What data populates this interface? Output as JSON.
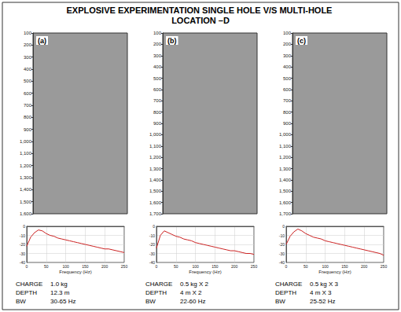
{
  "title": "EXPLOSIVE EXPERIMENTATION SINGLE HOLE V/S MULTI-HOLE LOCATION –D",
  "chart_data": [
    {
      "type": "seismic",
      "label": "(a)",
      "ylim": [
        100,
        1600
      ],
      "yticks": [
        100,
        200,
        300,
        400,
        500,
        600,
        700,
        800,
        900,
        1000,
        1100,
        1200,
        1300,
        1400,
        1500,
        1600
      ],
      "tick_labels": "y",
      "color": "#9a9a9a"
    },
    {
      "type": "seismic",
      "label": "(b)",
      "ylim": [
        100,
        1700
      ],
      "yticks": [
        100,
        200,
        300,
        400,
        500,
        600,
        700,
        800,
        900,
        1000,
        1100,
        1200,
        1300,
        1400,
        1500,
        1600,
        1700
      ],
      "tick_labels": "y",
      "color": "#9a9a9a"
    },
    {
      "type": "seismic",
      "label": "(c)",
      "ylim": [
        100,
        1700
      ],
      "yticks": [
        100,
        200,
        300,
        400,
        500,
        600,
        700,
        800,
        900,
        1000,
        1100,
        1200,
        1300,
        1400,
        1500,
        1600,
        1700
      ],
      "tick_labels": "y",
      "color": "#9a9a9a"
    },
    {
      "type": "line",
      "xlabel": "Frequency (Hz)",
      "color": "#cc2222",
      "grid": true,
      "xlim": [
        0,
        250
      ],
      "xticks": [
        0,
        50,
        100,
        150,
        200,
        250
      ],
      "ylim": [
        -40,
        0
      ],
      "yticks": [
        -40,
        -30,
        -20,
        -10,
        0
      ],
      "x": [
        0,
        10,
        20,
        30,
        40,
        50,
        60,
        70,
        80,
        90,
        100,
        110,
        120,
        130,
        140,
        150,
        160,
        170,
        180,
        190,
        200,
        210,
        220,
        230,
        240,
        250
      ],
      "values": [
        -22,
        -12,
        -7,
        -4,
        -5,
        -8,
        -10,
        -11,
        -13,
        -14,
        -15,
        -16,
        -17,
        -18,
        -19,
        -20,
        -21,
        -22,
        -23,
        -24,
        -25,
        -25,
        -26,
        -27,
        -28,
        -29
      ],
      "annotations": [
        {
          "label": "CHARGE",
          "value": "1.0 kg"
        },
        {
          "label": "DEPTH",
          "value": "12.3 m"
        },
        {
          "label": "BW",
          "value": "30-65 Hz"
        }
      ]
    },
    {
      "type": "line",
      "xlabel": "Frequency (Hz)",
      "color": "#cc2222",
      "grid": true,
      "xlim": [
        0,
        250
      ],
      "xticks": [
        0,
        50,
        100,
        150,
        200,
        250
      ],
      "ylim": [
        -40,
        0
      ],
      "yticks": [
        -40,
        -30,
        -20,
        -10,
        0
      ],
      "x": [
        0,
        10,
        20,
        30,
        40,
        50,
        60,
        70,
        80,
        90,
        100,
        110,
        120,
        130,
        140,
        150,
        160,
        170,
        180,
        190,
        200,
        210,
        220,
        230,
        240,
        250
      ],
      "values": [
        -24,
        -10,
        -5,
        -7,
        -9,
        -11,
        -12,
        -14,
        -15,
        -16,
        -18,
        -19,
        -20,
        -21,
        -22,
        -23,
        -24,
        -25,
        -26,
        -27,
        -27,
        -28,
        -29,
        -30,
        -30,
        -31
      ],
      "annotations": [
        {
          "label": "CHARGE",
          "value": "0.5 kg X 2"
        },
        {
          "label": "DEPTH",
          "value": "4 m X 2"
        },
        {
          "label": "BW",
          "value": "22-60 Hz"
        }
      ]
    },
    {
      "type": "line",
      "xlabel": "Frequency (Hz)",
      "color": "#cc2222",
      "grid": true,
      "xlim": [
        0,
        250
      ],
      "xticks": [
        0,
        50,
        100,
        150,
        200,
        250
      ],
      "ylim": [
        -40,
        0
      ],
      "yticks": [
        -40,
        -30,
        -20,
        -10,
        0
      ],
      "x": [
        0,
        10,
        20,
        30,
        40,
        50,
        60,
        70,
        80,
        90,
        100,
        110,
        120,
        130,
        140,
        150,
        160,
        170,
        180,
        190,
        200,
        210,
        220,
        230,
        240,
        250
      ],
      "values": [
        -20,
        -11,
        -6,
        -3,
        -5,
        -8,
        -10,
        -12,
        -13,
        -14,
        -16,
        -17,
        -18,
        -19,
        -20,
        -21,
        -22,
        -23,
        -24,
        -25,
        -26,
        -27,
        -28,
        -29,
        -30,
        -32
      ],
      "annotations": [
        {
          "label": "CHARGE",
          "value": "0.5 kg X 3"
        },
        {
          "label": "DEPTH",
          "value": "4 m X 3"
        },
        {
          "label": "BW",
          "value": "25-52 Hz"
        }
      ]
    }
  ]
}
